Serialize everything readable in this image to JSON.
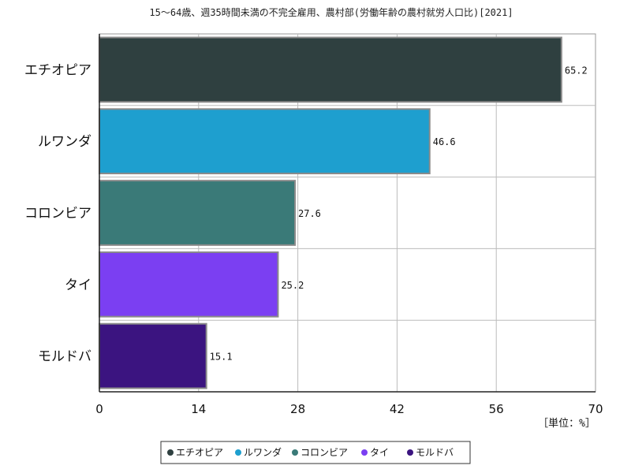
{
  "chart_data": {
    "type": "bar",
    "orientation": "horizontal",
    "title": "15～64歳、週35時間未満の不完全雇用、農村部(労働年齢の農村就労人口比)[2021]",
    "unit_label": "［単位：%］",
    "categories": [
      "エチオピア",
      "ルワンダ",
      "コロンビア",
      "タイ",
      "モルドバ"
    ],
    "values": [
      65.2,
      46.6,
      27.6,
      25.2,
      15.1
    ],
    "value_labels": [
      "65.2",
      "46.6",
      "27.6",
      "25.2",
      "15.1"
    ],
    "colors": [
      "#2f4040",
      "#1e9fcf",
      "#3a7a78",
      "#7b3ff2",
      "#3b1480"
    ],
    "xlim": [
      0,
      70
    ],
    "xticks": [
      0,
      14,
      28,
      42,
      56,
      70
    ],
    "grid": true,
    "legend_position": "bottom",
    "legend": [
      "エチオピア",
      "ルワンダ",
      "コロンビア",
      "タイ",
      "モルドバ"
    ]
  }
}
